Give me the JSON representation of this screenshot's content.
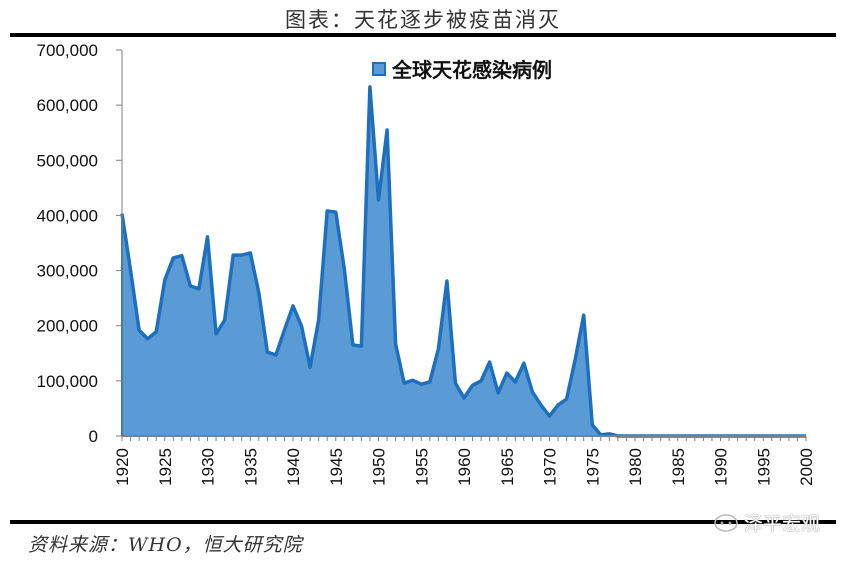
{
  "header": {
    "title": "图表：天花逐步被疫苗消灭"
  },
  "footer": {
    "source": "资料来源：WHO，恒大研究院",
    "watermark": "泽平宏观",
    "watermark_icon": "wechat-icon"
  },
  "colors": {
    "area_fill": "#5b9bd5",
    "line": "#1f6fbf",
    "axis": "#7f7f7f",
    "rule": "#000000"
  },
  "legend": {
    "label": "全球天花感染病例"
  },
  "chart_data": {
    "type": "area",
    "title": "图表：天花逐步被疫苗消灭",
    "xlabel": "",
    "ylabel": "",
    "ylim": [
      0,
      700000
    ],
    "grid": false,
    "legend_position": "top-center",
    "y_ticks": [
      "0",
      "100,000",
      "200,000",
      "300,000",
      "400,000",
      "500,000",
      "600,000",
      "700,000"
    ],
    "x_ticks": [
      "1920",
      "1925",
      "1930",
      "1935",
      "1940",
      "1945",
      "1950",
      "1955",
      "1960",
      "1965",
      "1970",
      "1975",
      "1980",
      "1985",
      "1990",
      "1995",
      "2000"
    ],
    "series": [
      {
        "name": "全球天花感染病例",
        "x": [
          1920,
          1921,
          1922,
          1923,
          1924,
          1925,
          1926,
          1927,
          1928,
          1929,
          1930,
          1931,
          1932,
          1933,
          1934,
          1935,
          1936,
          1937,
          1938,
          1939,
          1940,
          1941,
          1942,
          1943,
          1944,
          1945,
          1946,
          1947,
          1948,
          1949,
          1950,
          1951,
          1952,
          1953,
          1954,
          1955,
          1956,
          1957,
          1958,
          1959,
          1960,
          1961,
          1962,
          1963,
          1964,
          1965,
          1966,
          1967,
          1968,
          1969,
          1970,
          1971,
          1972,
          1973,
          1974,
          1975,
          1976,
          1977,
          1978,
          1979,
          1980,
          1981,
          1982,
          1983,
          1984,
          1985,
          1986,
          1987,
          1988,
          1989,
          1990,
          1991,
          1992,
          1993,
          1994,
          1995,
          1996,
          1997,
          1998,
          1999,
          2000
        ],
        "values": [
          403000,
          300000,
          192000,
          176000,
          189000,
          283000,
          323000,
          327000,
          272000,
          267000,
          361000,
          185000,
          210000,
          328000,
          328000,
          332000,
          260000,
          152000,
          147000,
          192000,
          236000,
          199000,
          125000,
          210000,
          408000,
          406000,
          303000,
          165000,
          163000,
          633000,
          428000,
          555000,
          167000,
          96000,
          101000,
          94000,
          98000,
          158000,
          281000,
          96000,
          69000,
          92000,
          100000,
          134000,
          78000,
          114000,
          98000,
          132000,
          80000,
          56000,
          36000,
          56000,
          67000,
          138000,
          219000,
          20000,
          2000,
          4000,
          0,
          0,
          0,
          0,
          0,
          0,
          0,
          0,
          0,
          0,
          0,
          0,
          0,
          0,
          0,
          0,
          0,
          0,
          0,
          0,
          0,
          0,
          0
        ]
      }
    ]
  }
}
